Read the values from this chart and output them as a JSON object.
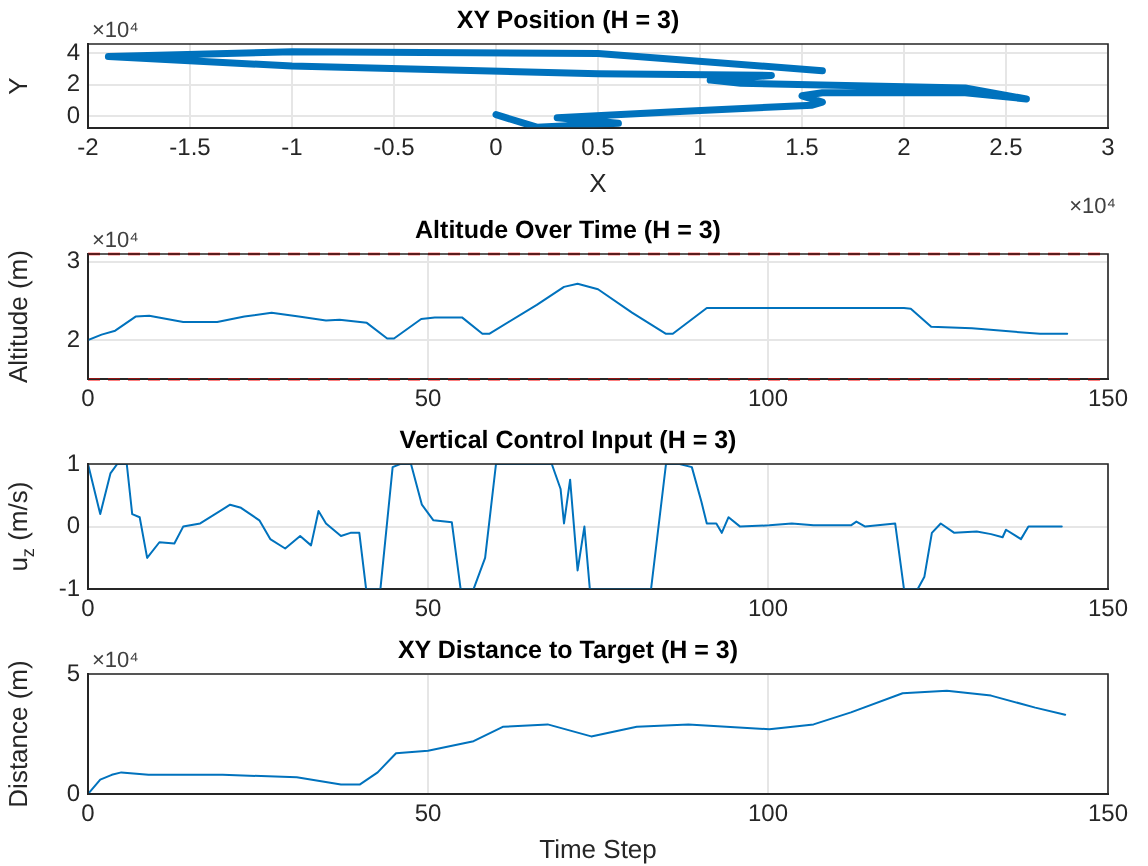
{
  "chart_data": [
    {
      "type": "line",
      "title": "XY Position (H = 3)",
      "xlabel": "X",
      "ylabel": "Y",
      "annotations": [
        "×10⁴",
        "×10⁴"
      ],
      "grid": true,
      "marker": "none",
      "line_style": "solid",
      "xlim": [
        -2,
        3
      ],
      "ylim": [
        -0.75,
        4.6
      ],
      "xticks": [
        -2,
        -1.5,
        -1,
        -0.5,
        0,
        0.5,
        1,
        1.5,
        2,
        2.5,
        3
      ],
      "yticks": [
        0,
        2,
        4
      ],
      "series": [
        {
          "color": "#0072bd",
          "x": [
            0,
            0.2,
            0.6,
            0.3,
            0.9,
            1.55,
            1.6,
            1.5,
            1.6,
            2.3,
            2.6,
            2.3,
            1.2,
            1.05,
            1.35,
            0.5,
            -1,
            -1.9,
            -1,
            0.5,
            1.6
          ],
          "values": [
            0.1,
            -0.7,
            -0.45,
            -0.1,
            0.3,
            0.7,
            0.9,
            1.3,
            1.5,
            1.5,
            1.1,
            1.8,
            2.1,
            2.3,
            2.6,
            2.7,
            3.2,
            3.8,
            4.1,
            4,
            2.9
          ]
        }
      ]
    },
    {
      "type": "line",
      "title": "Altitude Over Time (H = 3)",
      "ylabel": "Altitude (m)",
      "annotations": [
        "×10⁴"
      ],
      "grid": true,
      "marker": "none",
      "line_style": "solid",
      "xlim": [
        0,
        150
      ],
      "ylim": [
        1.5,
        3.1
      ],
      "xticks": [
        0,
        50,
        100,
        150
      ],
      "yticks": [
        2,
        3
      ],
      "ref_lines": [
        {
          "axis": "y",
          "value": 1.5,
          "color": "#ff0000",
          "line_style": "dashed"
        },
        {
          "axis": "y",
          "value": 3.1,
          "color": "#ff0000",
          "line_style": "dashed"
        }
      ],
      "series": [
        {
          "color": "#0072bd",
          "x": [
            0,
            2,
            4,
            7,
            9,
            14,
            19,
            23,
            27,
            31,
            35,
            37,
            41,
            44,
            45,
            49,
            51,
            55,
            58,
            59,
            66,
            70,
            72,
            75,
            80,
            85,
            86,
            91,
            100,
            120,
            121,
            124,
            130,
            140,
            144
          ],
          "values": [
            2,
            2.07,
            2.12,
            2.3,
            2.31,
            2.23,
            2.23,
            2.3,
            2.35,
            2.3,
            2.25,
            2.26,
            2.22,
            2.02,
            2.02,
            2.27,
            2.29,
            2.29,
            2.08,
            2.08,
            2.45,
            2.68,
            2.72,
            2.65,
            2.35,
            2.08,
            2.08,
            2.41,
            2.41,
            2.41,
            2.4,
            2.17,
            2.15,
            2.08,
            2.08
          ]
        }
      ]
    },
    {
      "type": "line",
      "title": "Vertical Control Input (H = 3)",
      "ylabel": "u$_{z}$ (m/s)",
      "grid": true,
      "marker": "none",
      "line_style": "solid",
      "xlim": [
        0,
        150
      ],
      "ylim": [
        -1,
        1
      ],
      "xticks": [
        0,
        50,
        100,
        150
      ],
      "yticks": [
        -1,
        0,
        1
      ],
      "series": [
        {
          "color": "#0072bd",
          "x": [
            0,
            1.8,
            3.3,
            4.3,
            5.7,
            6.5,
            7.6,
            8.7,
            10.5,
            12.7,
            14,
            16.5,
            20.9,
            22.5,
            25.2,
            26.8,
            29,
            31.2,
            32.8,
            33.9,
            35,
            37.2,
            38.6,
            39.9,
            40.9,
            43,
            44.8,
            45.9,
            47.5,
            49.1,
            50.8,
            53.5,
            54.8,
            56.7,
            58.4,
            60,
            68.2,
            69.5,
            70,
            70.9,
            72,
            73,
            73.8,
            82.8,
            85,
            87,
            88.8,
            90.2,
            91,
            92.4,
            93.2,
            94.2,
            95.9,
            100.2,
            103.5,
            106.7,
            112.2,
            113,
            114.3,
            118.7,
            120,
            122,
            123,
            124.1,
            125.4,
            127.4,
            130.7,
            132.8,
            134.5,
            135,
            137.2,
            138.3,
            143.2
          ],
          "values": [
            1,
            0.2,
            0.85,
            1,
            1,
            0.2,
            0.15,
            -0.5,
            -0.25,
            -0.27,
            0,
            0.05,
            0.35,
            0.3,
            0.1,
            -0.2,
            -0.35,
            -0.15,
            -0.3,
            0.25,
            0.05,
            -0.15,
            -0.1,
            -0.1,
            -1,
            -1,
            0.95,
            1,
            1,
            0.35,
            0.1,
            0.07,
            -1,
            -1,
            -0.5,
            1,
            1,
            0.6,
            0.05,
            0.75,
            -0.7,
            0,
            -1,
            -1,
            1,
            1,
            0.95,
            0.4,
            0.05,
            0.05,
            -0.1,
            0.15,
            0,
            0.02,
            0.05,
            0.02,
            0.02,
            0.08,
            0,
            0.05,
            -1,
            -1,
            -0.8,
            -0.1,
            0.05,
            -0.1,
            -0.08,
            -0.12,
            -0.17,
            -0.05,
            -0.2,
            0,
            0
          ]
        }
      ]
    },
    {
      "type": "line",
      "title": "XY Distance to Target (H = 3)",
      "xlabel": "Time Step",
      "ylabel": "Distance (m)",
      "annotations": [
        "×10⁴"
      ],
      "grid": true,
      "marker": "none",
      "line_style": "solid",
      "xlim": [
        0,
        150
      ],
      "ylim": [
        0,
        5
      ],
      "xticks": [
        0,
        50,
        100,
        150
      ],
      "yticks": [
        0,
        5
      ],
      "series": [
        {
          "color": "#0072bd",
          "x": [
            0,
            1.8,
            3.5,
            4.9,
            8.9,
            19.8,
            30.7,
            37.2,
            40,
            42.6,
            45.3,
            50,
            56.7,
            61,
            67.6,
            74,
            80.7,
            88.3,
            100.2,
            106.7,
            112.2,
            119.8,
            126.3,
            132.8,
            139.3,
            143.7
          ],
          "values": [
            0,
            0.6,
            0.8,
            0.9,
            0.8,
            0.8,
            0.7,
            0.4,
            0.4,
            0.9,
            1.7,
            1.8,
            2.2,
            2.8,
            2.9,
            2.4,
            2.8,
            2.9,
            2.7,
            2.9,
            3.4,
            4.2,
            4.3,
            4.1,
            3.6,
            3.3
          ]
        }
      ]
    }
  ]
}
